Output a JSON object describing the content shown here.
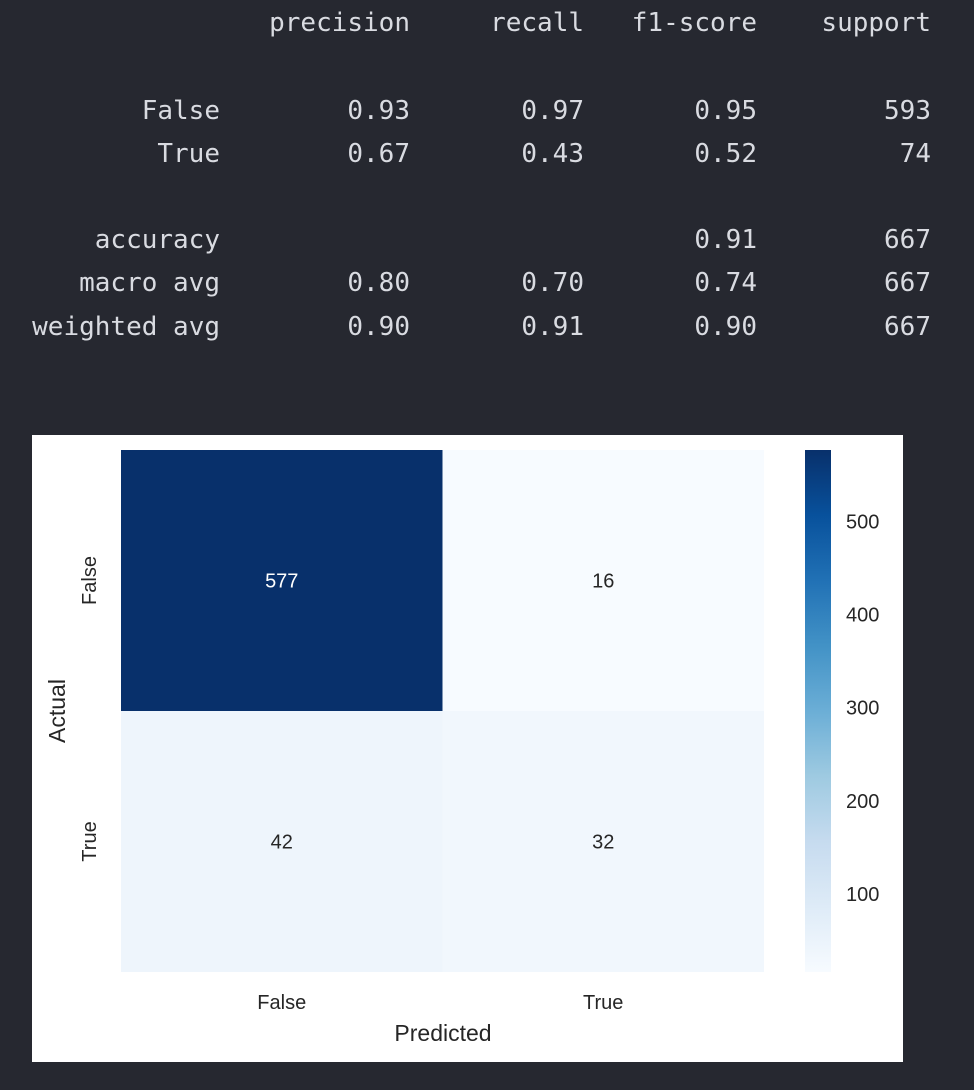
{
  "report": {
    "headers": [
      "precision",
      "recall",
      "f1-score",
      "support"
    ],
    "rows": [
      {
        "label": "False",
        "precision": "0.93",
        "recall": "0.97",
        "f1": "0.95",
        "support": "593"
      },
      {
        "label": "True",
        "precision": "0.67",
        "recall": "0.43",
        "f1": "0.52",
        "support": "74"
      },
      {
        "label": "accuracy",
        "precision": "",
        "recall": "",
        "f1": "0.91",
        "support": "667"
      },
      {
        "label": "macro avg",
        "precision": "0.80",
        "recall": "0.70",
        "f1": "0.74",
        "support": "667"
      },
      {
        "label": "weighted avg",
        "precision": "0.90",
        "recall": "0.91",
        "f1": "0.90",
        "support": "667"
      }
    ]
  },
  "chart_data": {
    "type": "heatmap",
    "title": "",
    "xlabel": "Predicted",
    "ylabel": "Actual",
    "x_categories": [
      "False",
      "True"
    ],
    "y_categories": [
      "False",
      "True"
    ],
    "values": [
      [
        577,
        16
      ],
      [
        42,
        32
      ]
    ],
    "colormap": "Blues",
    "colorbar": {
      "ticks": [
        100,
        200,
        300,
        400,
        500
      ],
      "min": 16,
      "max": 577
    },
    "colors": {
      "low": "#f7fbff",
      "high": "#08306b",
      "label_dark": "#262626",
      "label_light": "#ffffff"
    }
  }
}
